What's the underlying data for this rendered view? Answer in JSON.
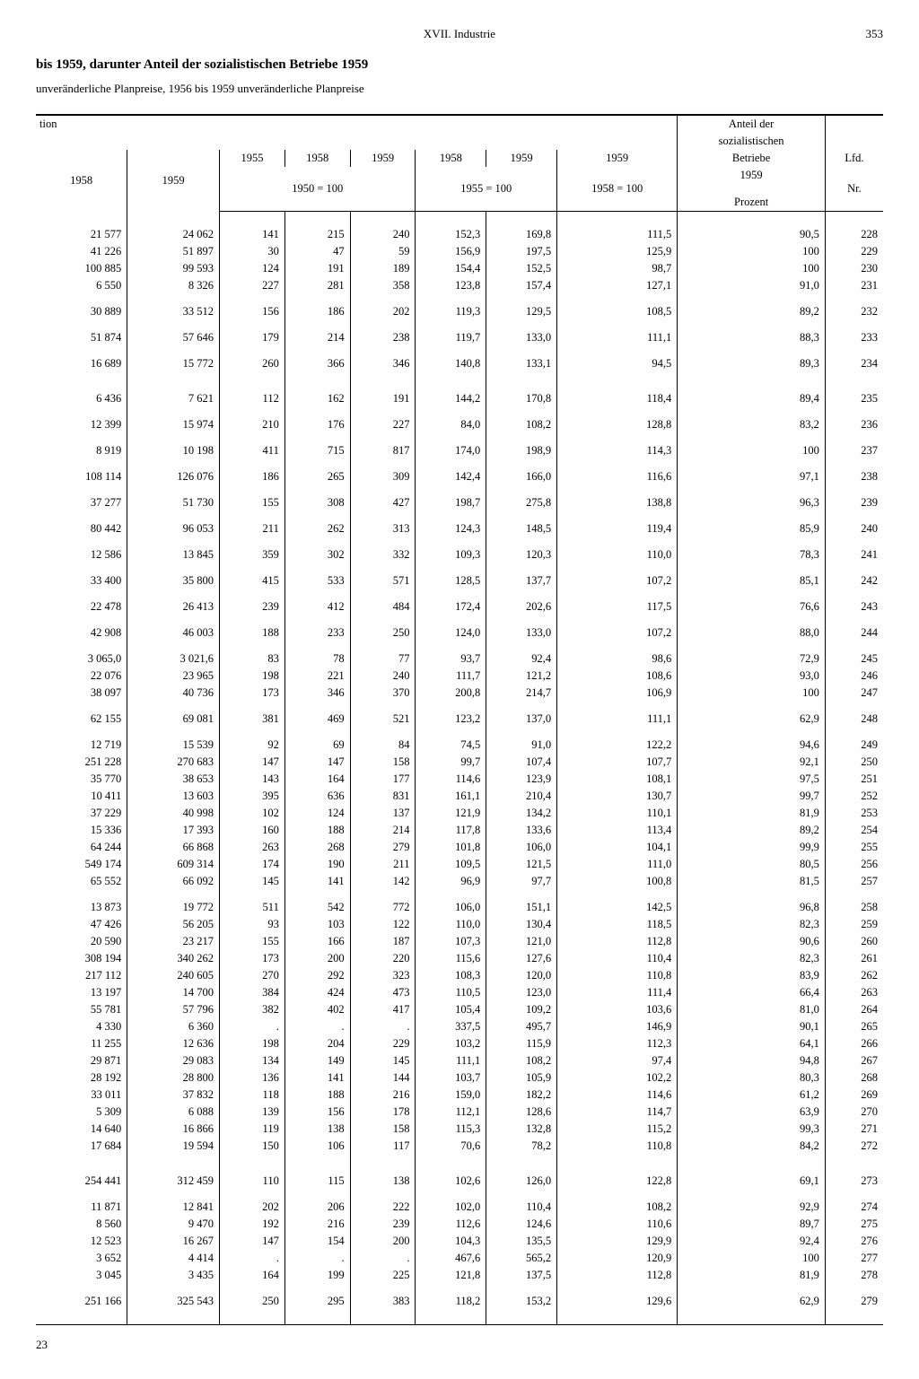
{
  "header": {
    "section": "XVII. Industrie",
    "page": "353",
    "title": "bis 1959, darunter Anteil der sozialistischen Betriebe 1959",
    "subtitle": "unveränderliche Planpreise, 1956 bis 1959 unveränderliche Planpreise",
    "footer": "23"
  },
  "thead": {
    "tion": "tion",
    "c1958": "1958",
    "c1959": "1959",
    "c1955": "1955",
    "c1958b": "1958",
    "c1959b": "1959",
    "c1958c": "1958",
    "c1959c": "1959",
    "c1959d": "1959",
    "anteil1": "Anteil der",
    "anteil2": "sozialistischen",
    "anteil3": "Betriebe",
    "anteil4": "1959",
    "lfd1": "Lfd.",
    "lfd2": "Nr.",
    "base1950": "1950 = 100",
    "base1955": "1955 = 100",
    "base1958": "1958 = 100",
    "prozent": "Prozent"
  },
  "rows": [
    [
      "21 577",
      "24 062",
      "141",
      "215",
      "240",
      "152,3",
      "169,8",
      "111,5",
      "90,5",
      "228"
    ],
    [
      "41 226",
      "51 897",
      "30",
      "47",
      "59",
      "156,9",
      "197,5",
      "125,9",
      "100",
      "229"
    ],
    [
      "100 885",
      "99 593",
      "124",
      "191",
      "189",
      "154,4",
      "152,5",
      "98,7",
      "100",
      "230"
    ],
    [
      "6 550",
      "8 326",
      "227",
      "281",
      "358",
      "123,8",
      "157,4",
      "127,1",
      "91,0",
      "231"
    ],
    [],
    [
      "30 889",
      "33 512",
      "156",
      "186",
      "202",
      "119,3",
      "129,5",
      "108,5",
      "89,2",
      "232"
    ],
    [],
    [
      "51 874",
      "57 646",
      "179",
      "214",
      "238",
      "119,7",
      "133,0",
      "111,1",
      "88,3",
      "233"
    ],
    [],
    [
      "16 689",
      "15 772",
      "260",
      "366",
      "346",
      "140,8",
      "133,1",
      "94,5",
      "89,3",
      "234"
    ],
    [],
    [],
    [
      "6 436",
      "7 621",
      "112",
      "162",
      "191",
      "144,2",
      "170,8",
      "118,4",
      "89,4",
      "235"
    ],
    [],
    [
      "12 399",
      "15 974",
      "210",
      "176",
      "227",
      "84,0",
      "108,2",
      "128,8",
      "83,2",
      "236"
    ],
    [],
    [
      "8 919",
      "10 198",
      "411",
      "715",
      "817",
      "174,0",
      "198,9",
      "114,3",
      "100",
      "237"
    ],
    [],
    [
      "108 114",
      "126 076",
      "186",
      "265",
      "309",
      "142,4",
      "166,0",
      "116,6",
      "97,1",
      "238"
    ],
    [],
    [
      "37 277",
      "51 730",
      "155",
      "308",
      "427",
      "198,7",
      "275,8",
      "138,8",
      "96,3",
      "239"
    ],
    [],
    [
      "80 442",
      "96 053",
      "211",
      "262",
      "313",
      "124,3",
      "148,5",
      "119,4",
      "85,9",
      "240"
    ],
    [],
    [
      "12 586",
      "13 845",
      "359",
      "302",
      "332",
      "109,3",
      "120,3",
      "110,0",
      "78,3",
      "241"
    ],
    [],
    [
      "33 400",
      "35 800",
      "415",
      "533",
      "571",
      "128,5",
      "137,7",
      "107,2",
      "85,1",
      "242"
    ],
    [],
    [
      "22 478",
      "26 413",
      "239",
      "412",
      "484",
      "172,4",
      "202,6",
      "117,5",
      "76,6",
      "243"
    ],
    [],
    [
      "42 908",
      "46 003",
      "188",
      "233",
      "250",
      "124,0",
      "133,0",
      "107,2",
      "88,0",
      "244"
    ],
    [],
    [
      "3 065,0",
      "3 021,6",
      "83",
      "78",
      "77",
      "93,7",
      "92,4",
      "98,6",
      "72,9",
      "245"
    ],
    [
      "22 076",
      "23 965",
      "198",
      "221",
      "240",
      "111,7",
      "121,2",
      "108,6",
      "93,0",
      "246"
    ],
    [
      "38 097",
      "40 736",
      "173",
      "346",
      "370",
      "200,8",
      "214,7",
      "106,9",
      "100",
      "247"
    ],
    [],
    [
      "62 155",
      "69 081",
      "381",
      "469",
      "521",
      "123,2",
      "137,0",
      "111,1",
      "62,9",
      "248"
    ],
    [],
    [
      "12 719",
      "15 539",
      "92",
      "69",
      "84",
      "74,5",
      "91,0",
      "122,2",
      "94,6",
      "249"
    ],
    [
      "251 228",
      "270 683",
      "147",
      "147",
      "158",
      "99,7",
      "107,4",
      "107,7",
      "92,1",
      "250"
    ],
    [
      "35 770",
      "38 653",
      "143",
      "164",
      "177",
      "114,6",
      "123,9",
      "108,1",
      "97,5",
      "251"
    ],
    [
      "10 411",
      "13 603",
      "395",
      "636",
      "831",
      "161,1",
      "210,4",
      "130,7",
      "99,7",
      "252"
    ],
    [
      "37 229",
      "40 998",
      "102",
      "124",
      "137",
      "121,9",
      "134,2",
      "110,1",
      "81,9",
      "253"
    ],
    [
      "15 336",
      "17 393",
      "160",
      "188",
      "214",
      "117,8",
      "133,6",
      "113,4",
      "89,2",
      "254"
    ],
    [
      "64 244",
      "66 868",
      "263",
      "268",
      "279",
      "101,8",
      "106,0",
      "104,1",
      "99,9",
      "255"
    ],
    [
      "549 174",
      "609 314",
      "174",
      "190",
      "211",
      "109,5",
      "121,5",
      "111,0",
      "80,5",
      "256"
    ],
    [
      "65 552",
      "66 092",
      "145",
      "141",
      "142",
      "96,9",
      "97,7",
      "100,8",
      "81,5",
      "257"
    ],
    [],
    [
      "13 873",
      "19 772",
      "511",
      "542",
      "772",
      "106,0",
      "151,1",
      "142,5",
      "96,8",
      "258"
    ],
    [
      "47 426",
      "56 205",
      "93",
      "103",
      "122",
      "110,0",
      "130,4",
      "118,5",
      "82,3",
      "259"
    ],
    [
      "20 590",
      "23 217",
      "155",
      "166",
      "187",
      "107,3",
      "121,0",
      "112,8",
      "90,6",
      "260"
    ],
    [
      "308 194",
      "340 262",
      "173",
      "200",
      "220",
      "115,6",
      "127,6",
      "110,4",
      "82,3",
      "261"
    ],
    [
      "217 112",
      "240 605",
      "270",
      "292",
      "323",
      "108,3",
      "120,0",
      "110,8",
      "83,9",
      "262"
    ],
    [
      "13 197",
      "14 700",
      "384",
      "424",
      "473",
      "110,5",
      "123,0",
      "111,4",
      "66,4",
      "263"
    ],
    [
      "55 781",
      "57 796",
      "382",
      "402",
      "417",
      "105,4",
      "109,2",
      "103,6",
      "81,0",
      "264"
    ],
    [
      "4 330",
      "6 360",
      ".",
      ".",
      ".",
      "337,5",
      "495,7",
      "146,9",
      "90,1",
      "265"
    ],
    [
      "11 255",
      "12 636",
      "198",
      "204",
      "229",
      "103,2",
      "115,9",
      "112,3",
      "64,1",
      "266"
    ],
    [
      "29 871",
      "29 083",
      "134",
      "149",
      "145",
      "111,1",
      "108,2",
      "97,4",
      "94,8",
      "267"
    ],
    [
      "28 192",
      "28 800",
      "136",
      "141",
      "144",
      "103,7",
      "105,9",
      "102,2",
      "80,3",
      "268"
    ],
    [
      "33 011",
      "37 832",
      "118",
      "188",
      "216",
      "159,0",
      "182,2",
      "114,6",
      "61,2",
      "269"
    ],
    [
      "5 309",
      "6 088",
      "139",
      "156",
      "178",
      "112,1",
      "128,6",
      "114,7",
      "63,9",
      "270"
    ],
    [
      "14 640",
      "16 866",
      "119",
      "138",
      "158",
      "115,3",
      "132,8",
      "115,2",
      "99,3",
      "271"
    ],
    [
      "17 684",
      "19 594",
      "150",
      "106",
      "117",
      "70,6",
      "78,2",
      "110,8",
      "84,2",
      "272"
    ],
    [],
    [],
    [
      "254 441",
      "312 459",
      "110",
      "115",
      "138",
      "102,6",
      "126,0",
      "122,8",
      "69,1",
      "273"
    ],
    [],
    [
      "11 871",
      "12 841",
      "202",
      "206",
      "222",
      "102,0",
      "110,4",
      "108,2",
      "92,9",
      "274"
    ],
    [
      "8 560",
      "9 470",
      "192",
      "216",
      "239",
      "112,6",
      "124,6",
      "110,6",
      "89,7",
      "275"
    ],
    [
      "12 523",
      "16 267",
      "147",
      "154",
      "200",
      "104,3",
      "135,5",
      "129,9",
      "92,4",
      "276"
    ],
    [
      "3 652",
      "4 414",
      ".",
      ".",
      ".",
      "467,6",
      "565,2",
      "120,9",
      "100",
      "277"
    ],
    [
      "3 045",
      "3 435",
      "164",
      "199",
      "225",
      "121,8",
      "137,5",
      "112,8",
      "81,9",
      "278"
    ],
    [],
    [
      "251 166",
      "325 543",
      "250",
      "295",
      "383",
      "118,2",
      "153,2",
      "129,6",
      "62,9",
      "279"
    ]
  ]
}
